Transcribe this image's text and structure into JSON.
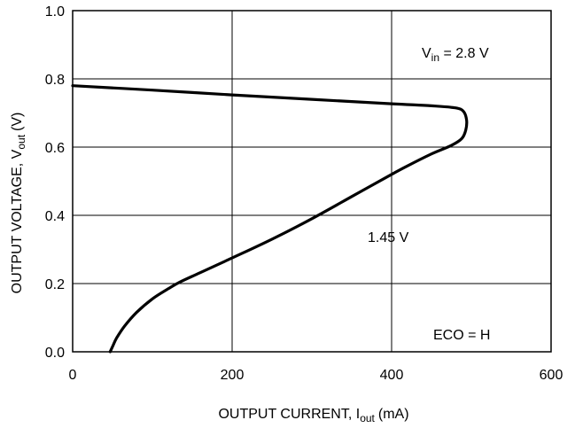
{
  "chart_data": {
    "type": "line",
    "xlabel": "OUTPUT CURRENT, I",
    "xlabel_sub": "out",
    "xlabel_unit": "(mA)",
    "ylabel": "OUTPUT VOLTAGE, V",
    "ylabel_sub": "out",
    "ylabel_unit": "(V)",
    "xlim": [
      0,
      600
    ],
    "ylim": [
      0.0,
      1.0
    ],
    "x_ticks": [
      "0",
      "200",
      "400",
      "600"
    ],
    "y_ticks": [
      "0.0",
      "0.2",
      "0.4",
      "0.6",
      "0.8",
      "1.0"
    ],
    "grid": true,
    "annotations": {
      "vin": {
        "prefix": "V",
        "sub": "in",
        "text": " = 2.8 V"
      },
      "threshold": "1.45 V",
      "eco": "ECO = H"
    },
    "series": [
      {
        "x": [
          0,
          100,
          200,
          300,
          400,
          450,
          480,
          490,
          494,
          493,
          488,
          475,
          450,
          420,
          400,
          350,
          300,
          250,
          200,
          160,
          135,
          120,
          100,
          80,
          65,
          55,
          50,
          47
        ],
        "y": [
          0.78,
          0.767,
          0.753,
          0.74,
          0.727,
          0.721,
          0.715,
          0.705,
          0.68,
          0.65,
          0.625,
          0.605,
          0.58,
          0.545,
          0.52,
          0.455,
          0.39,
          0.33,
          0.275,
          0.232,
          0.205,
          0.185,
          0.155,
          0.115,
          0.075,
          0.04,
          0.015,
          0.0
        ]
      }
    ]
  }
}
